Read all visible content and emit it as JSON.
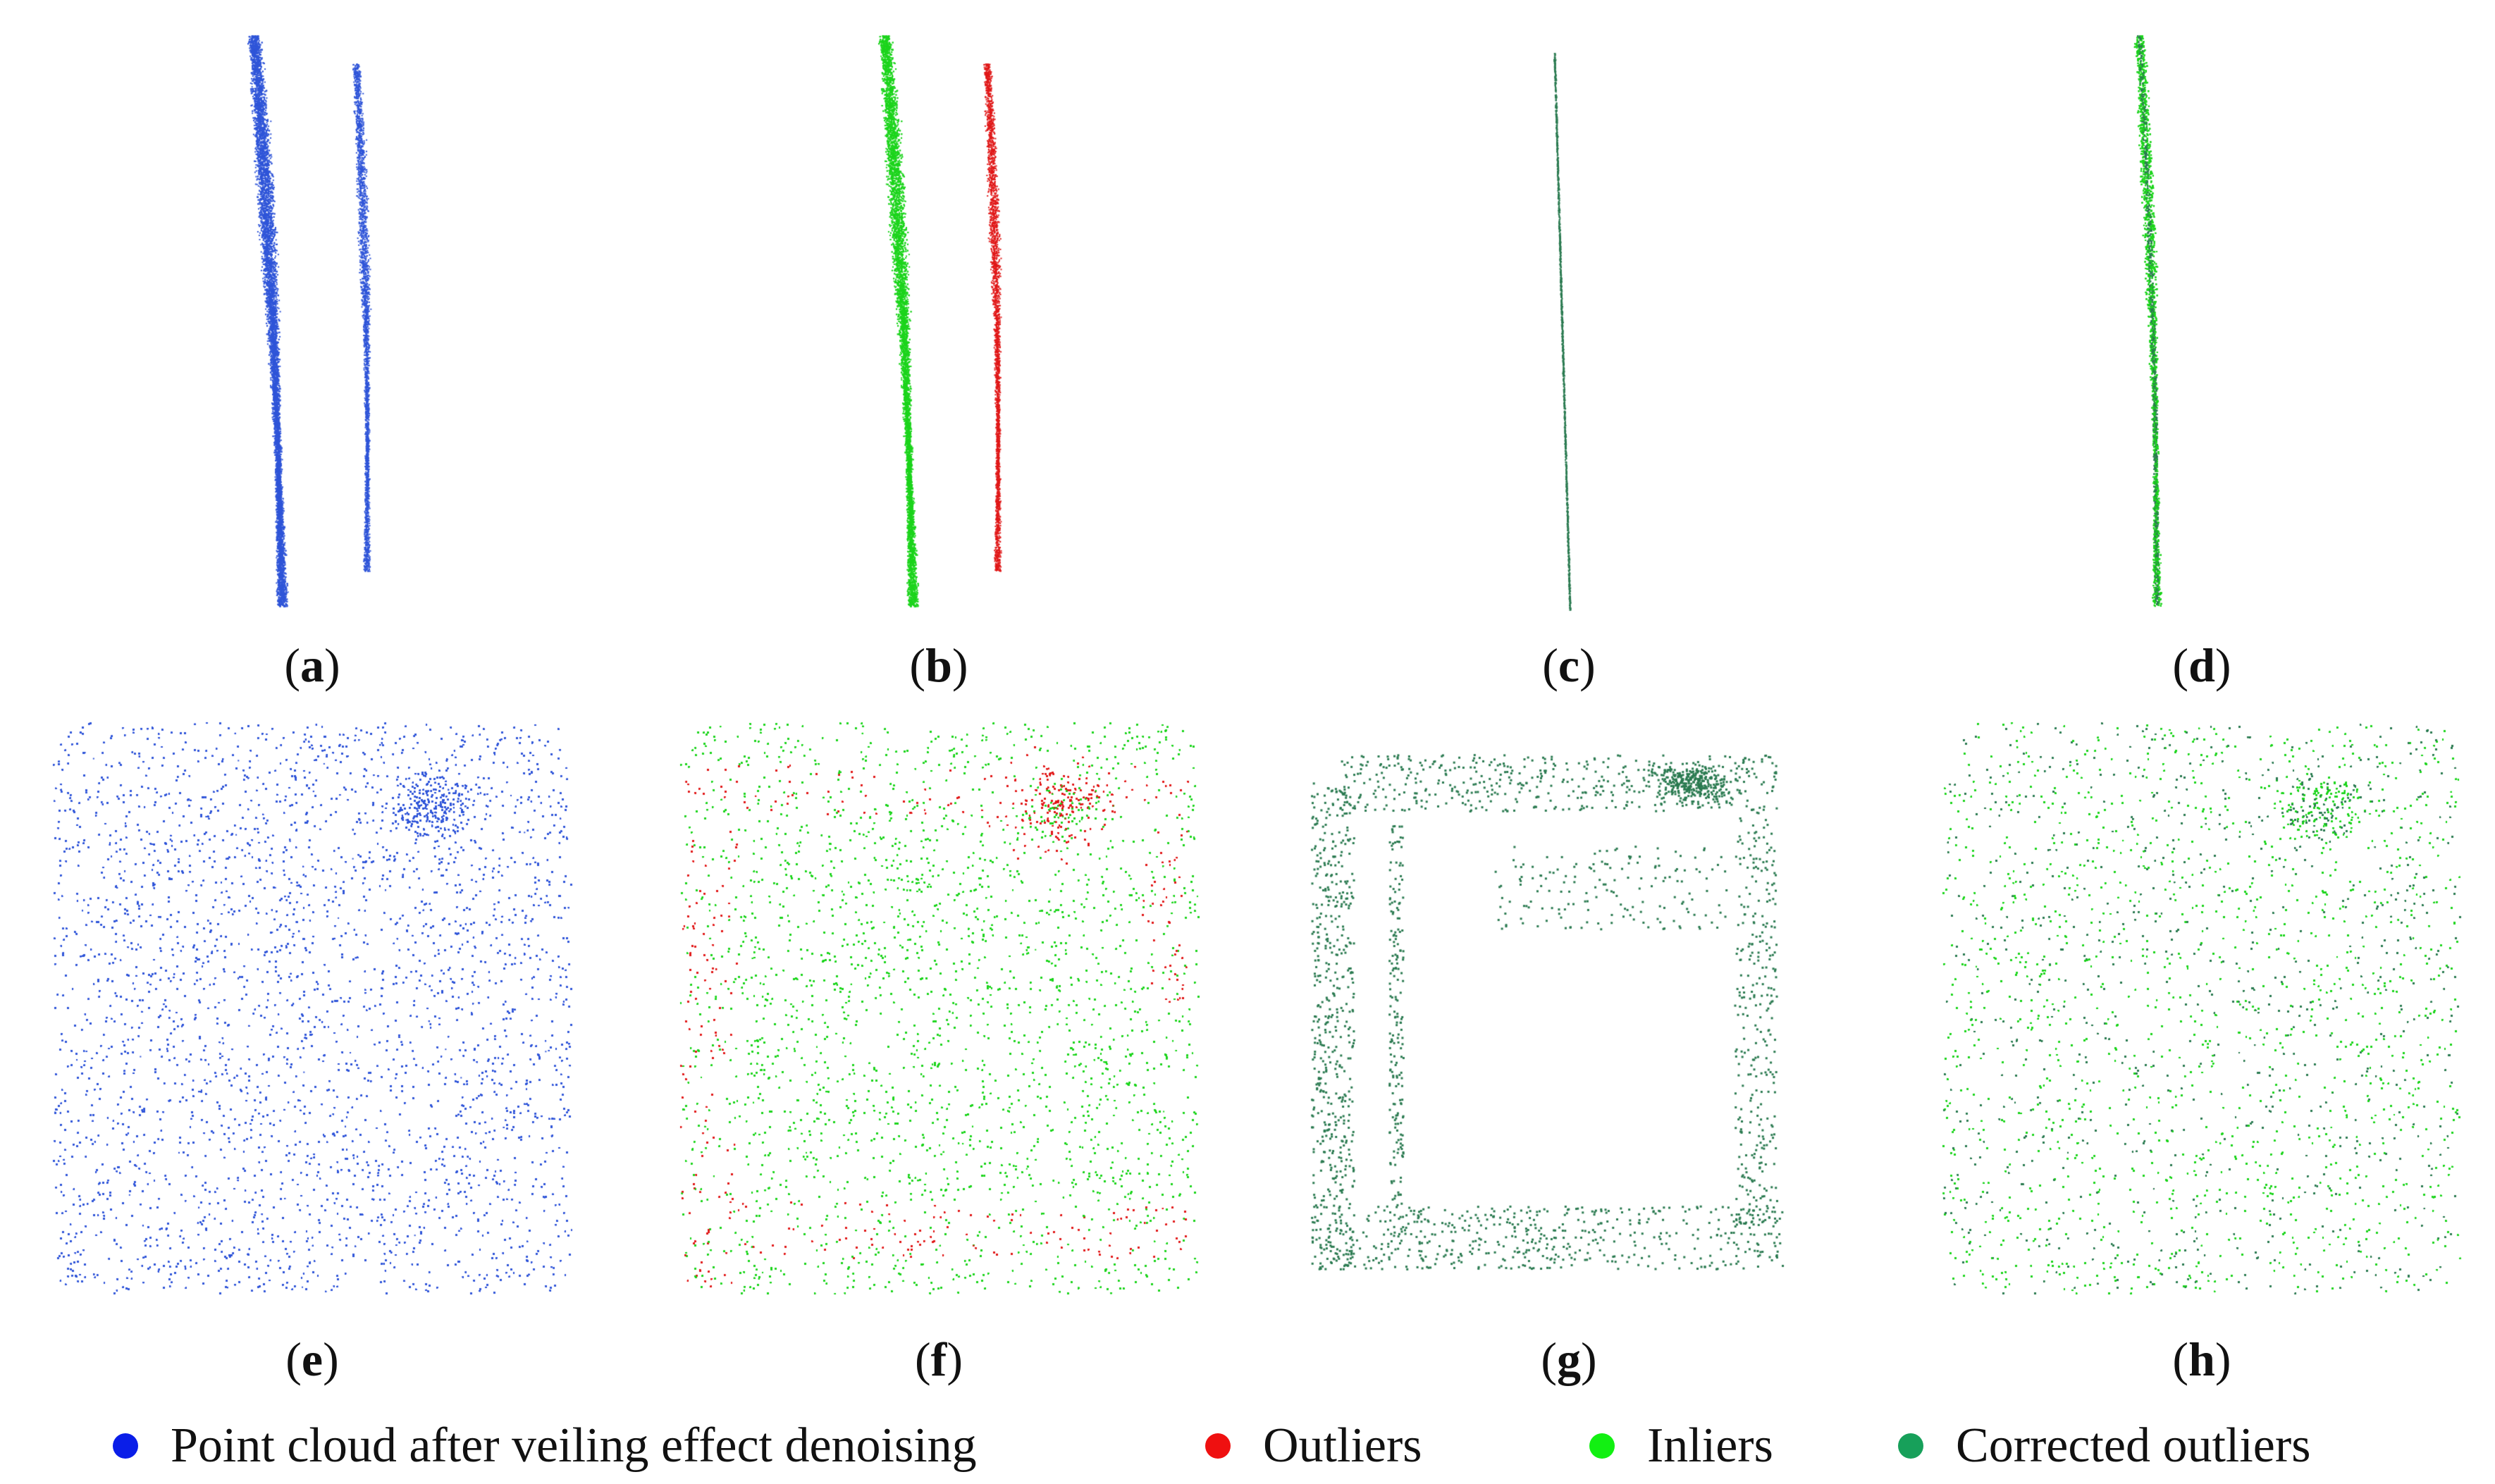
{
  "figure": {
    "panels": [
      {
        "id": "a",
        "label": "a",
        "kind": "side",
        "color_key": "after_denoising"
      },
      {
        "id": "b",
        "label": "b",
        "kind": "side",
        "color_key": "mixed"
      },
      {
        "id": "c",
        "label": "c",
        "kind": "side-thin",
        "color_key": "corrected"
      },
      {
        "id": "d",
        "label": "d",
        "kind": "side",
        "color_key": "final"
      },
      {
        "id": "e",
        "label": "e",
        "kind": "front",
        "color_key": "after_denoising"
      },
      {
        "id": "f",
        "label": "f",
        "kind": "front",
        "color_key": "mixed"
      },
      {
        "id": "g",
        "label": "g",
        "kind": "front-sparse",
        "color_key": "corrected"
      },
      {
        "id": "h",
        "label": "h",
        "kind": "front",
        "color_key": "final"
      }
    ],
    "legend": [
      {
        "key": "after_denoising",
        "label": "Point cloud after veiling effect denoising",
        "color": "#0a1ee8"
      },
      {
        "key": "outliers",
        "label": "Outliers",
        "color": "#ef1010"
      },
      {
        "key": "inliers",
        "label": "Inliers",
        "color": "#12f012"
      },
      {
        "key": "corrected",
        "label": "Corrected outliers",
        "color": "#17a05a"
      }
    ],
    "point_colors": {
      "blue": "#2f55d8",
      "red": "#e01818",
      "green": "#1cd41c",
      "dark_green": "#2a7a50"
    }
  }
}
